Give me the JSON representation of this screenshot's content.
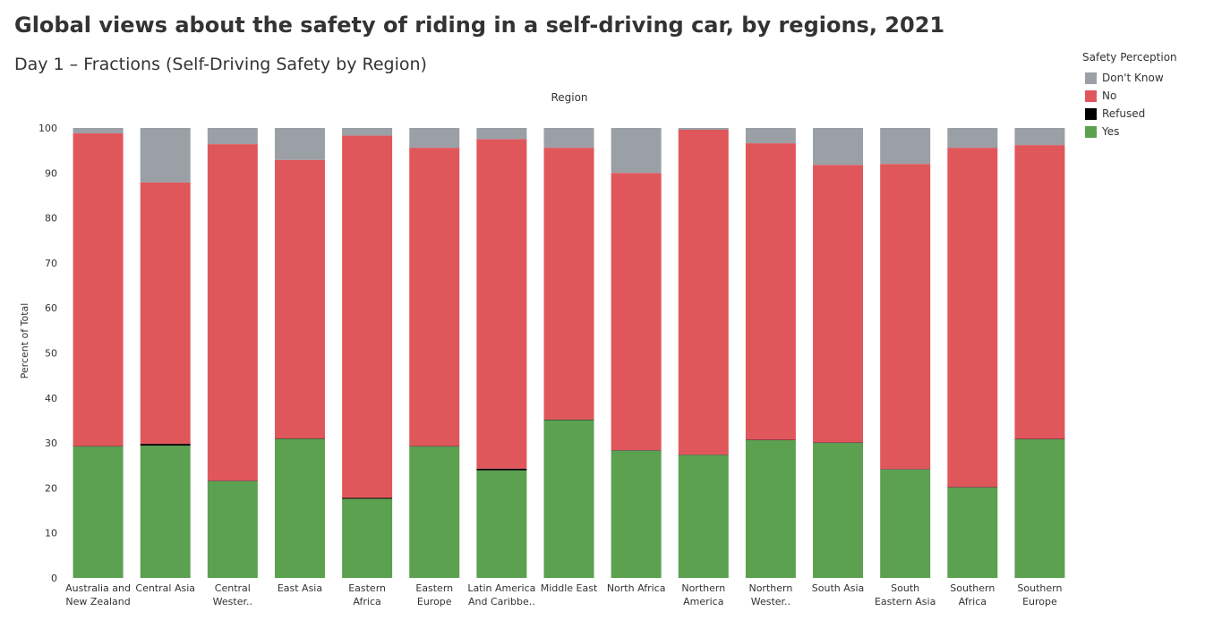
{
  "title": "Global views about the safety of riding in a self-driving car, by regions, 2021",
  "subtitle": "Day 1 – Fractions (Self-Driving Safety by Region)",
  "legend": {
    "title": "Safety Perception",
    "items": [
      {
        "label": "Don't Know",
        "color": "#9aa0a6"
      },
      {
        "label": "No",
        "color": "#e0575b"
      },
      {
        "label": "Refused",
        "color": "#000000"
      },
      {
        "label": "Yes",
        "color": "#5ba150"
      }
    ]
  },
  "chart_data": {
    "type": "bar",
    "stacked": true,
    "title": "Global views about the safety of riding in a self-driving car, by regions, 2021",
    "xlabel": "Region",
    "ylabel": "Percent of Total",
    "ylim": [
      0,
      100
    ],
    "yticks": [
      0,
      10,
      20,
      30,
      40,
      50,
      60,
      70,
      80,
      90,
      100
    ],
    "categories": [
      [
        "Australia and",
        "New Zealand"
      ],
      [
        "Central Asia"
      ],
      [
        "Central",
        "Wester.."
      ],
      [
        "East Asia"
      ],
      [
        "Eastern",
        "Africa"
      ],
      [
        "Eastern",
        "Europe"
      ],
      [
        "Latin America",
        "And Caribbe.."
      ],
      [
        "Middle East"
      ],
      [
        "North Africa"
      ],
      [
        "Northern",
        "America"
      ],
      [
        "Northern",
        "Wester.."
      ],
      [
        "South Asia"
      ],
      [
        "South",
        "Eastern Asia"
      ],
      [
        "Southern",
        "Africa"
      ],
      [
        "Southern",
        "Europe"
      ]
    ],
    "series": [
      {
        "name": "Yes",
        "color": "#5ba150",
        "values": [
          29.2,
          29.4,
          21.5,
          30.9,
          17.6,
          29.2,
          23.9,
          35.1,
          28.3,
          27.3,
          30.6,
          30.0,
          24.1,
          20.1,
          30.8
        ]
      },
      {
        "name": "Refused",
        "color": "#000000",
        "values": [
          0.1,
          0.4,
          0.1,
          0.1,
          0.2,
          0.1,
          0.4,
          0.1,
          0.1,
          0.1,
          0.1,
          0.1,
          0.1,
          0.1,
          0.1
        ]
      },
      {
        "name": "No",
        "color": "#e0575b",
        "values": [
          69.5,
          58.1,
          74.8,
          61.9,
          80.5,
          66.3,
          73.2,
          60.4,
          61.6,
          72.2,
          65.9,
          61.7,
          67.8,
          75.4,
          65.3
        ]
      },
      {
        "name": "Don't Know",
        "color": "#9aa0a6",
        "values": [
          1.2,
          12.1,
          3.6,
          7.1,
          1.7,
          4.4,
          2.5,
          4.4,
          10.0,
          0.4,
          3.4,
          8.2,
          8.0,
          4.4,
          3.8
        ]
      }
    ],
    "legend_position": "top-right",
    "grid": false
  }
}
